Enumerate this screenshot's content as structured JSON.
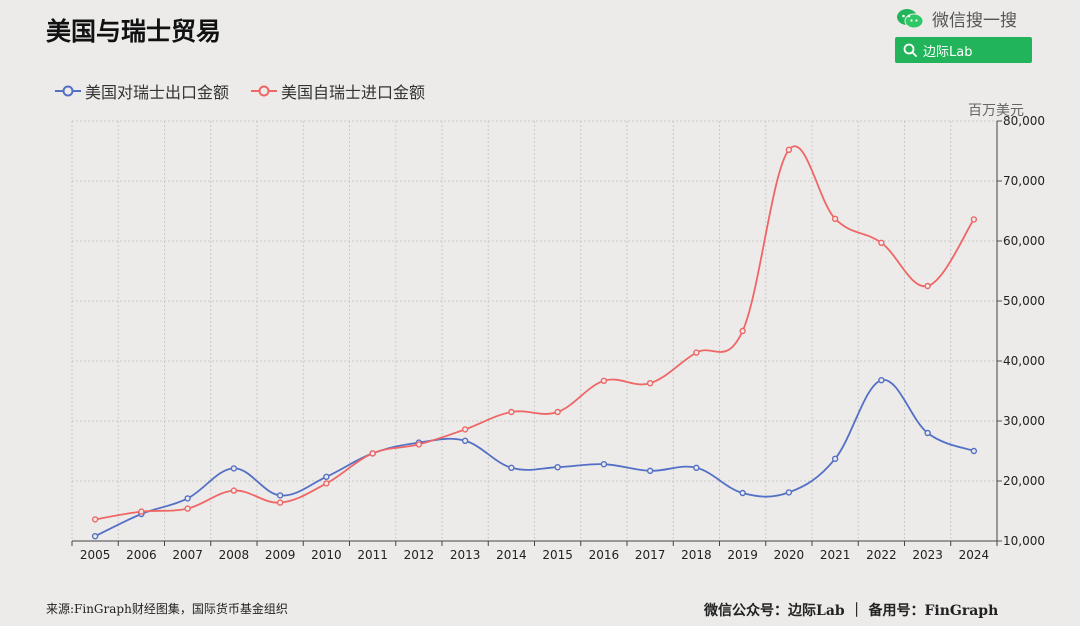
{
  "header": {
    "title": "美国与瑞士贸易",
    "wechat_label": "微信搜一搜",
    "search_label": "边际Lab",
    "icons": {
      "wechat": "wechat-icon",
      "search": "search-icon"
    }
  },
  "footer": {
    "source": "来源:FinGraph财经图集，国际货币基金组织",
    "credit": "微信公众号：边际Lab ｜ 备用号：FinGraph"
  },
  "colors": {
    "export": "#5470c6",
    "import": "#ee6666"
  },
  "chart_data": {
    "type": "line",
    "title": "美国与瑞士贸易",
    "ylabel": "百万美元",
    "x": [
      "2005",
      "2006",
      "2007",
      "2008",
      "2009",
      "2010",
      "2011",
      "2012",
      "2013",
      "2014",
      "2015",
      "2016",
      "2017",
      "2018",
      "2019",
      "2020",
      "2021",
      "2022",
      "2023",
      "2024"
    ],
    "ylim": [
      10000,
      80000
    ],
    "yticks": [
      "10,000",
      "20,000",
      "30,000",
      "40,000",
      "50,000",
      "60,000",
      "70,000",
      "80,000"
    ],
    "ytick_values": [
      10000,
      20000,
      30000,
      40000,
      50000,
      60000,
      70000,
      80000
    ],
    "grid": true,
    "legend_position": "top-left",
    "y_axis_side": "right",
    "series": [
      {
        "name": "美国对瑞士出口金额",
        "values": [
          10800,
          14500,
          17100,
          22100,
          17600,
          20700,
          24600,
          26400,
          26700,
          22200,
          22300,
          22800,
          21700,
          22200,
          18000,
          18100,
          23700,
          36800,
          28000,
          25000
        ]
      },
      {
        "name": "美国自瑞士进口金额",
        "values": [
          13600,
          14900,
          15400,
          18400,
          16400,
          19600,
          24600,
          26100,
          28600,
          31500,
          31500,
          36700,
          36300,
          41400,
          45000,
          75200,
          63700,
          59700,
          52500,
          63600
        ]
      }
    ]
  }
}
